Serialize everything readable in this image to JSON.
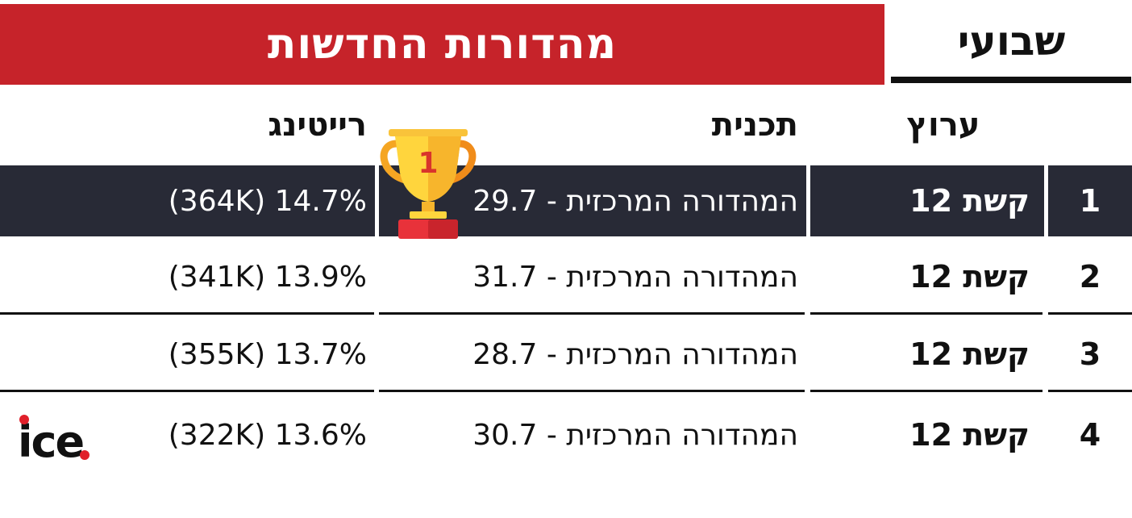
{
  "header": {
    "title": "מהדורות החדשות",
    "period": "שבועי",
    "banner_color": "#c6232a"
  },
  "columns": {
    "channel": "ערוץ",
    "program": "תכנית",
    "rating": "רייטינג"
  },
  "rows": [
    {
      "rank": "1",
      "channel": "קשת 12",
      "program": "המהדורה המרכזית - 29.7",
      "rating": "14.7% (364K)"
    },
    {
      "rank": "2",
      "channel": "קשת 12",
      "program": "המהדורה המרכזית - 31.7",
      "rating": "13.9% (341K)"
    },
    {
      "rank": "3",
      "channel": "קשת 12",
      "program": "המהדורה המרכזית - 28.7",
      "rating": "13.7% (355K)"
    },
    {
      "rank": "4",
      "channel": "קשת 12",
      "program": "המהדורה המרכזית - 30.7",
      "rating": "13.6% (322K)"
    }
  ],
  "trophy": {
    "icon": "trophy-icon",
    "number": "1"
  },
  "logo": {
    "text": "ice",
    "dot_color": "#e0202a"
  },
  "highlight_row_color": "#282a36"
}
